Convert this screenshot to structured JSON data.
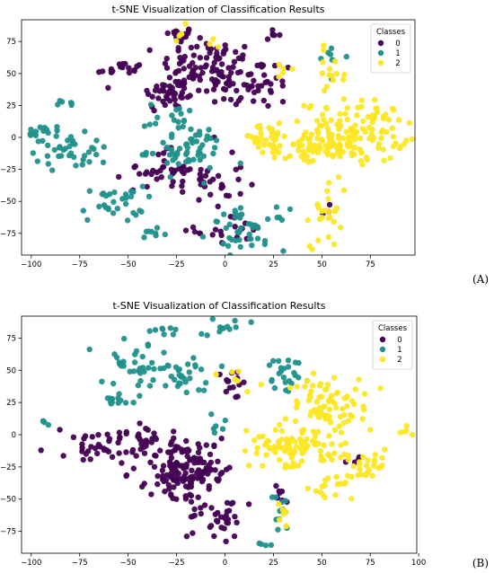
{
  "colors": {
    "class_0": "#440154",
    "class_1": "#21918c",
    "class_2": "#fde725"
  },
  "chart_data": [
    {
      "type": "scatter",
      "panel": "A",
      "title": "t-SNE Visualization of Classification Results",
      "xlabel": "",
      "ylabel": "",
      "xlim": [
        -105,
        98
      ],
      "ylim": [
        -92,
        92
      ],
      "xticks": [
        -100,
        -75,
        -50,
        -25,
        0,
        25,
        50,
        75
      ],
      "yticks": [
        -75,
        -50,
        -25,
        0,
        25,
        50,
        75
      ],
      "grid": false,
      "legend": {
        "title": "Classes",
        "placement": "top-right"
      },
      "clusters": [
        {
          "class": "0",
          "x": -24,
          "y": 80,
          "sx": 4,
          "sy": 3,
          "n": 22
        },
        {
          "class": "0",
          "x": -8,
          "y": 58,
          "sx": 12,
          "sy": 9,
          "n": 70
        },
        {
          "class": "0",
          "x": -28,
          "y": 35,
          "sx": 8,
          "sy": 8,
          "n": 50
        },
        {
          "class": "0",
          "x": 13,
          "y": 42,
          "sx": 12,
          "sy": 10,
          "n": 55
        },
        {
          "class": "0",
          "x": -54,
          "y": 53,
          "sx": 6,
          "sy": 3,
          "n": 18
        },
        {
          "class": "0",
          "x": -35,
          "y": -25,
          "sx": 8,
          "sy": 7,
          "n": 28
        },
        {
          "class": "0",
          "x": -10,
          "y": -35,
          "sx": 10,
          "sy": 10,
          "n": 35
        },
        {
          "class": "0",
          "x": 5,
          "y": -73,
          "sx": 10,
          "sy": 6,
          "n": 20
        },
        {
          "class": "0",
          "x": 24,
          "y": 80,
          "sx": 2,
          "sy": 2,
          "n": 6
        },
        {
          "class": "0",
          "x": 52,
          "y": -55,
          "sx": 2,
          "sy": 2,
          "n": 3
        },
        {
          "class": "1",
          "x": -78,
          "y": -8,
          "sx": 10,
          "sy": 9,
          "n": 40
        },
        {
          "class": "1",
          "x": -58,
          "y": -52,
          "sx": 8,
          "sy": 7,
          "n": 30
        },
        {
          "class": "1",
          "x": -20,
          "y": -10,
          "sx": 10,
          "sy": 9,
          "n": 55
        },
        {
          "class": "1",
          "x": 12,
          "y": -72,
          "sx": 10,
          "sy": 8,
          "n": 45
        },
        {
          "class": "1",
          "x": -38,
          "y": -75,
          "sx": 4,
          "sy": 4,
          "n": 8
        },
        {
          "class": "1",
          "x": -95,
          "y": 2,
          "sx": 5,
          "sy": 3,
          "n": 12
        },
        {
          "class": "1",
          "x": -82,
          "y": 27,
          "sx": 3,
          "sy": 2,
          "n": 6
        },
        {
          "class": "1",
          "x": 55,
          "y": 62,
          "sx": 4,
          "sy": 6,
          "n": 8
        },
        {
          "class": "1",
          "x": -25,
          "y": 15,
          "sx": 8,
          "sy": 6,
          "n": 15
        },
        {
          "class": "2",
          "x": 68,
          "y": 5,
          "sx": 13,
          "sy": 12,
          "n": 130
        },
        {
          "class": "2",
          "x": 45,
          "y": -10,
          "sx": 10,
          "sy": 7,
          "n": 50
        },
        {
          "class": "2",
          "x": 22,
          "y": -2,
          "sx": 8,
          "sy": 6,
          "n": 35
        },
        {
          "class": "2",
          "x": 52,
          "y": -58,
          "sx": 4,
          "sy": 14,
          "n": 25
        },
        {
          "class": "2",
          "x": 55,
          "y": 48,
          "sx": 4,
          "sy": 10,
          "n": 15
        },
        {
          "class": "2",
          "x": -22,
          "y": 82,
          "sx": 2,
          "sy": 3,
          "n": 5
        },
        {
          "class": "2",
          "x": -8,
          "y": 72,
          "sx": 2,
          "sy": 2,
          "n": 3
        },
        {
          "class": "2",
          "x": 25,
          "y": 50,
          "sx": 5,
          "sy": 5,
          "n": 5
        }
      ]
    },
    {
      "type": "scatter",
      "panel": "B",
      "title": "t-SNE Visualization of Classification Results",
      "xlabel": "",
      "ylabel": "",
      "xlim": [
        -105,
        99
      ],
      "ylim": [
        -92,
        92
      ],
      "xticks": [
        -100,
        -75,
        -50,
        -25,
        0,
        25,
        50,
        75,
        100
      ],
      "yticks": [
        -75,
        -50,
        -25,
        0,
        25,
        50,
        75
      ],
      "grid": false,
      "legend": {
        "title": "Classes",
        "placement": "top-right"
      },
      "clusters": [
        {
          "class": "0",
          "x": -22,
          "y": -25,
          "sx": 11,
          "sy": 12,
          "n": 160
        },
        {
          "class": "0",
          "x": -65,
          "y": -8,
          "sx": 11,
          "sy": 5,
          "n": 40
        },
        {
          "class": "0",
          "x": -5,
          "y": -65,
          "sx": 7,
          "sy": 8,
          "n": 35
        },
        {
          "class": "0",
          "x": -42,
          "y": 0,
          "sx": 5,
          "sy": 4,
          "n": 12
        },
        {
          "class": "0",
          "x": 0,
          "y": 40,
          "sx": 6,
          "sy": 6,
          "n": 14
        },
        {
          "class": "0",
          "x": 28,
          "y": -45,
          "sx": 3,
          "sy": 6,
          "n": 8
        },
        {
          "class": "0",
          "x": 70,
          "y": -20,
          "sx": 3,
          "sy": 2,
          "n": 4
        },
        {
          "class": "1",
          "x": -45,
          "y": 55,
          "sx": 8,
          "sy": 9,
          "n": 35
        },
        {
          "class": "1",
          "x": -20,
          "y": 45,
          "sx": 6,
          "sy": 8,
          "n": 30
        },
        {
          "class": "1",
          "x": -30,
          "y": 82,
          "sx": 4,
          "sy": 3,
          "n": 8
        },
        {
          "class": "1",
          "x": 0,
          "y": 83,
          "sx": 5,
          "sy": 4,
          "n": 12
        },
        {
          "class": "1",
          "x": 30,
          "y": 45,
          "sx": 6,
          "sy": 10,
          "n": 25
        },
        {
          "class": "1",
          "x": -55,
          "y": 28,
          "sx": 4,
          "sy": 3,
          "n": 12
        },
        {
          "class": "1",
          "x": -93,
          "y": 10,
          "sx": 2,
          "sy": 2,
          "n": 4
        },
        {
          "class": "1",
          "x": 28,
          "y": -60,
          "sx": 3,
          "sy": 8,
          "n": 12
        },
        {
          "class": "1",
          "x": -5,
          "y": 8,
          "sx": 4,
          "sy": 5,
          "n": 6
        },
        {
          "class": "1",
          "x": 18,
          "y": -85,
          "sx": 2,
          "sy": 1,
          "n": 4
        },
        {
          "class": "2",
          "x": 55,
          "y": 25,
          "sx": 10,
          "sy": 13,
          "n": 80
        },
        {
          "class": "2",
          "x": 35,
          "y": -10,
          "sx": 14,
          "sy": 8,
          "n": 90
        },
        {
          "class": "2",
          "x": 75,
          "y": -25,
          "sx": 6,
          "sy": 5,
          "n": 25
        },
        {
          "class": "2",
          "x": 55,
          "y": -40,
          "sx": 10,
          "sy": 6,
          "n": 20
        },
        {
          "class": "2",
          "x": 93,
          "y": 2,
          "sx": 2,
          "sy": 2,
          "n": 5
        },
        {
          "class": "2",
          "x": 5,
          "y": 45,
          "sx": 5,
          "sy": 5,
          "n": 8
        },
        {
          "class": "2",
          "x": 28,
          "y": -60,
          "sx": 3,
          "sy": 6,
          "n": 6
        }
      ]
    }
  ],
  "panel_labels": {
    "a": "(A)",
    "b": "(B)"
  },
  "legend_entries": [
    "0",
    "1",
    "2"
  ]
}
